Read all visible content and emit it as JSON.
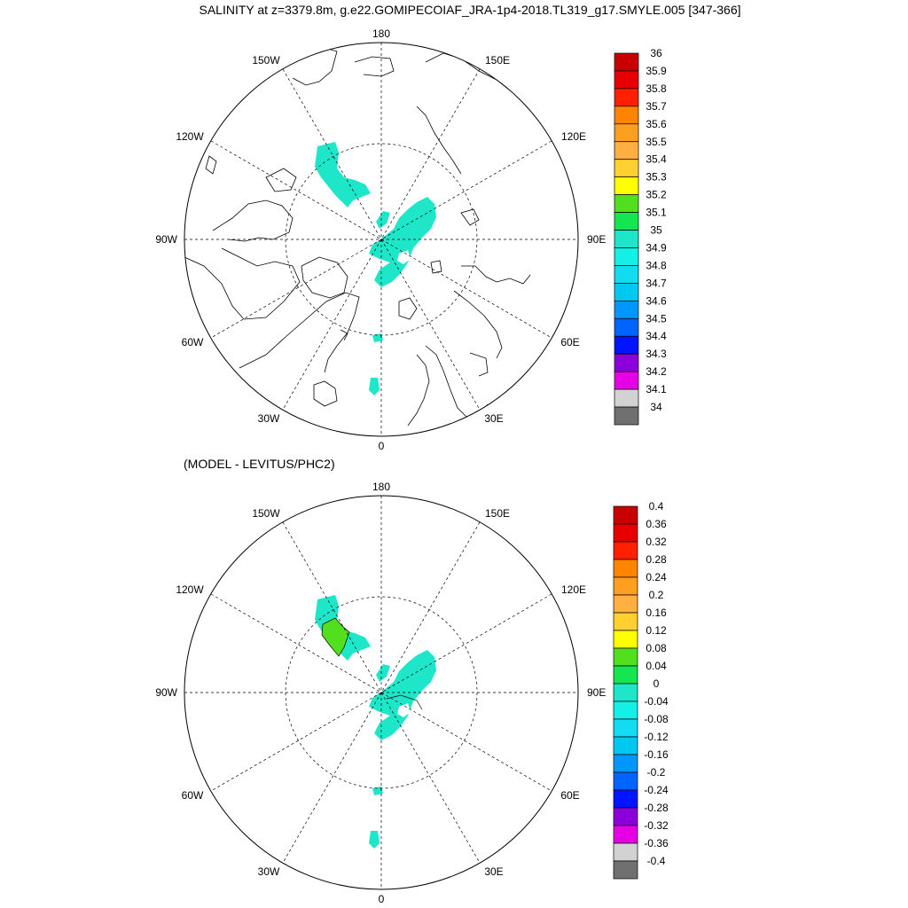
{
  "title": "SALINITY at z=3379.8m, g.e22.GOMIPECOIAF_JRA-1p4-2018.TL319_g17.SMYLE.005 [347-366]",
  "subtitle": "(MODEL - LEVITUS/PHC2)",
  "lon_labels": {
    "top": "180",
    "bottom": "0",
    "left": "90W",
    "right": "90E",
    "nw_upper": "150W",
    "nw_lower": "120W",
    "ne_upper": "150E",
    "ne_lower": "120E",
    "sw_upper": "60W",
    "sw_lower": "30W",
    "se_upper": "60E",
    "se_lower": "30E"
  },
  "colorbars": {
    "top": {
      "labels": [
        "36",
        "35.9",
        "35.8",
        "35.7",
        "35.6",
        "35.5",
        "35.4",
        "35.3",
        "35.2",
        "35.1",
        "35",
        "34.9",
        "34.8",
        "34.7",
        "34.6",
        "34.5",
        "34.4",
        "34.3",
        "34.2",
        "34.1",
        "34"
      ]
    },
    "bottom": {
      "labels": [
        "0.4",
        "0.36",
        "0.32",
        "0.28",
        "0.24",
        "0.2",
        "0.16",
        "0.12",
        "0.08",
        "0.04",
        "0",
        "-0.04",
        "-0.08",
        "-0.12",
        "-0.16",
        "-0.2",
        "-0.24",
        "-0.28",
        "-0.32",
        "-0.36",
        "-0.4"
      ]
    }
  },
  "palette": [
    "#c80000",
    "#e60000",
    "#ff2000",
    "#ff8400",
    "#ff9f20",
    "#ffb040",
    "#ffd030",
    "#ffff00",
    "#52e01e",
    "#14e650",
    "#1ee6c8",
    "#14f0e6",
    "#14dcf0",
    "#00c8f0",
    "#0096ff",
    "#0064ff",
    "#0014ff",
    "#8c00dc",
    "#e600e6",
    "#d2d2d2",
    "#707070"
  ]
}
